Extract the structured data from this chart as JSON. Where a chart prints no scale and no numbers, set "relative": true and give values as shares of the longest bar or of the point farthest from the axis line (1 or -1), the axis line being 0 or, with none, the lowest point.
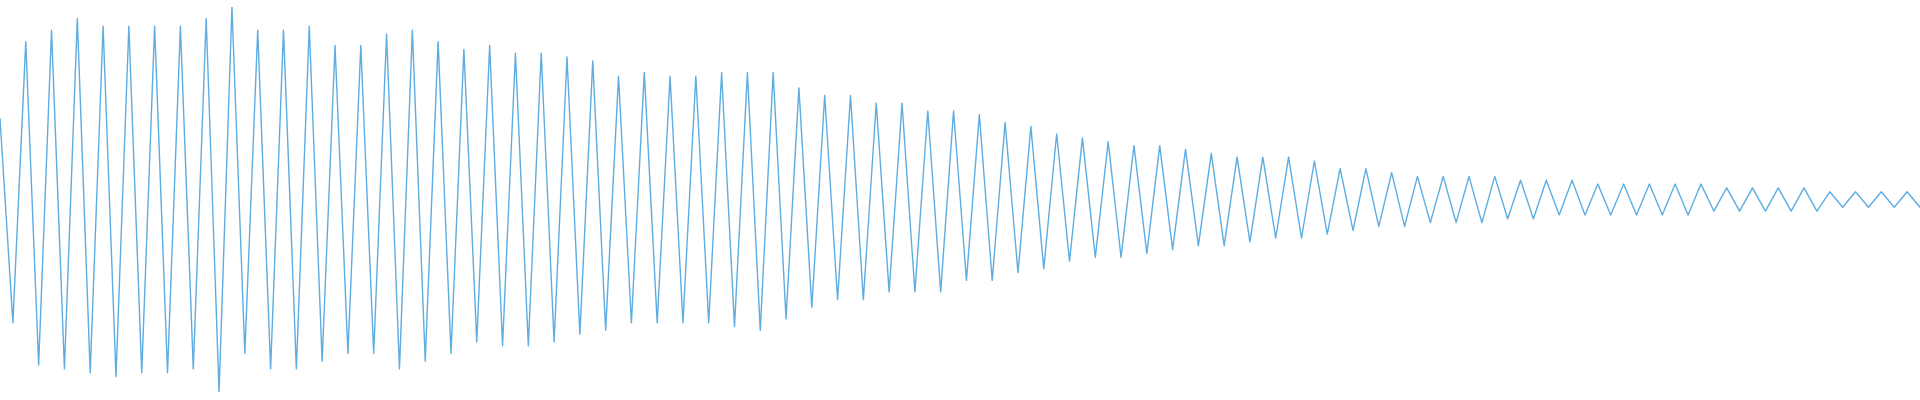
{
  "chart_data": {
    "type": "line",
    "relative": true,
    "color": "#5dade2",
    "categories": [
      null,
      null,
      null,
      null,
      null,
      null,
      null,
      null,
      null,
      null,
      null,
      null,
      null,
      null,
      null,
      null,
      null,
      null,
      null,
      null,
      null,
      null,
      null,
      null,
      null,
      null,
      null,
      null,
      null,
      null,
      null,
      null,
      null,
      null,
      null,
      null,
      null,
      null,
      null,
      null,
      null,
      null,
      null,
      null,
      null,
      null,
      null,
      null,
      null,
      null,
      null,
      null,
      null,
      null,
      null,
      null,
      null,
      null,
      null,
      null,
      null,
      null,
      null,
      null,
      null,
      null,
      null,
      null,
      null,
      null,
      null,
      null,
      null,
      null,
      null,
      null,
      null,
      null,
      null,
      null,
      null,
      null,
      null,
      null,
      null,
      null,
      null,
      null,
      null,
      null,
      null,
      null,
      null,
      null,
      null,
      null,
      null,
      null,
      null,
      null,
      null,
      null,
      null,
      null,
      null,
      null,
      null,
      null,
      null,
      null,
      null,
      null,
      null,
      null,
      null,
      null,
      null,
      null,
      null,
      null,
      null,
      null,
      null,
      null,
      null,
      null,
      null,
      null,
      null,
      null,
      null,
      null,
      null,
      null,
      null,
      null,
      null,
      null,
      null,
      null,
      null,
      null,
      null,
      null,
      null,
      null,
      null,
      null,
      null,
      null
    ],
    "values": [
      0.71,
      0.18,
      0.91,
      0.07,
      0.94,
      0.06,
      0.97,
      0.05,
      0.95,
      0.04,
      0.95,
      0.05,
      0.95,
      0.05,
      0.95,
      0.06,
      0.97,
      0,
      1,
      0.1,
      0.94,
      0.06,
      0.94,
      0.06,
      0.95,
      0.08,
      0.9,
      0.1,
      0.9,
      0.1,
      0.93,
      0.06,
      0.94,
      0.08,
      0.91,
      0.1,
      0.89,
      0.13,
      0.9,
      0.12,
      0.88,
      0.12,
      0.88,
      0.13,
      0.87,
      0.15,
      0.86,
      0.16,
      0.82,
      0.18,
      0.83,
      0.18,
      0.82,
      0.18,
      0.82,
      0.18,
      0.83,
      0.17,
      0.83,
      0.16,
      0.83,
      0.19,
      0.79,
      0.22,
      0.77,
      0.24,
      0.77,
      0.24,
      0.75,
      0.26,
      0.75,
      0.26,
      0.73,
      0.26,
      0.73,
      0.29,
      0.72,
      0.29,
      0.7,
      0.31,
      0.69,
      0.32,
      0.67,
      0.34,
      0.66,
      0.35,
      0.65,
      0.35,
      0.64,
      0.36,
      0.64,
      0.37,
      0.63,
      0.38,
      0.62,
      0.38,
      0.61,
      0.39,
      0.61,
      0.4,
      0.61,
      0.4,
      0.6,
      0.41,
      0.58,
      0.42,
      0.58,
      0.43,
      0.57,
      0.43,
      0.56,
      0.44,
      0.56,
      0.44,
      0.56,
      0.44,
      0.56,
      0.45,
      0.55,
      0.45,
      0.55,
      0.46,
      0.55,
      0.46,
      0.54,
      0.46,
      0.54,
      0.46,
      0.54,
      0.46,
      0.54,
      0.46,
      0.54,
      0.47,
      0.53,
      0.47,
      0.53,
      0.47,
      0.53,
      0.47,
      0.53,
      0.47,
      0.52,
      0.48,
      0.52,
      0.48,
      0.52,
      0.48,
      0.52,
      0.48
    ]
  }
}
